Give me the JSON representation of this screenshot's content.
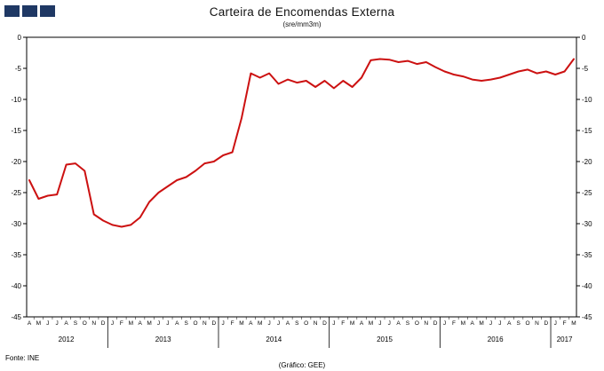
{
  "header": {
    "title": "Carteira de Encomendas Externa",
    "subtitle": "(sre/mm3m)"
  },
  "footer": {
    "source": "Fonte:  INE",
    "credit": "(Gráfico:  GEE)"
  },
  "logo": {
    "square_color": "#1F3864",
    "square_count": 3
  },
  "chart_data": {
    "type": "line",
    "title": "Carteira de Encomendas Externa",
    "subtitle": "(sre/mm3m)",
    "xlabel": "",
    "ylabel": "",
    "ylim": [
      -45,
      0
    ],
    "grid": false,
    "legend": "none",
    "line_color": "#CC1111",
    "yticks": [
      0,
      -5,
      -10,
      -15,
      -20,
      -25,
      -30,
      -35,
      -40,
      -45
    ],
    "years": [
      {
        "label": "2012",
        "months": [
          "A",
          "M",
          "J",
          "J",
          "A",
          "S",
          "O",
          "N",
          "D"
        ]
      },
      {
        "label": "2013",
        "months": [
          "J",
          "F",
          "M",
          "A",
          "M",
          "J",
          "J",
          "A",
          "S",
          "O",
          "N",
          "D"
        ]
      },
      {
        "label": "2014",
        "months": [
          "J",
          "F",
          "M",
          "A",
          "M",
          "J",
          "J",
          "A",
          "S",
          "O",
          "N",
          "D"
        ]
      },
      {
        "label": "2015",
        "months": [
          "J",
          "F",
          "M",
          "A",
          "M",
          "J",
          "J",
          "A",
          "S",
          "O",
          "N",
          "D"
        ]
      },
      {
        "label": "2016",
        "months": [
          "J",
          "F",
          "M",
          "A",
          "M",
          "J",
          "J",
          "A",
          "S",
          "O",
          "N",
          "D"
        ]
      },
      {
        "label": "2017",
        "months": [
          "J",
          "F",
          "M"
        ]
      }
    ],
    "values": [
      -23.0,
      -26.0,
      -25.5,
      -25.3,
      -20.5,
      -20.3,
      -21.5,
      -28.5,
      -29.5,
      -30.2,
      -30.5,
      -30.2,
      -29.0,
      -26.5,
      -25.0,
      -24.0,
      -23.0,
      -22.5,
      -21.5,
      -20.3,
      -20.0,
      -19.0,
      -18.5,
      -13.0,
      -5.8,
      -6.5,
      -5.8,
      -7.5,
      -6.8,
      -7.3,
      -7.0,
      -8.0,
      -7.0,
      -8.2,
      -7.0,
      -8.0,
      -6.5,
      -3.7,
      -3.5,
      -3.6,
      -4.0,
      -3.8,
      -4.3,
      -4.0,
      -4.8,
      -5.5,
      -6.0,
      -6.3,
      -6.8,
      -7.0,
      -6.8,
      -6.5,
      -6.0,
      -5.5,
      -5.2,
      -5.8,
      -5.5,
      -6.0,
      -5.5,
      -3.5
    ]
  }
}
